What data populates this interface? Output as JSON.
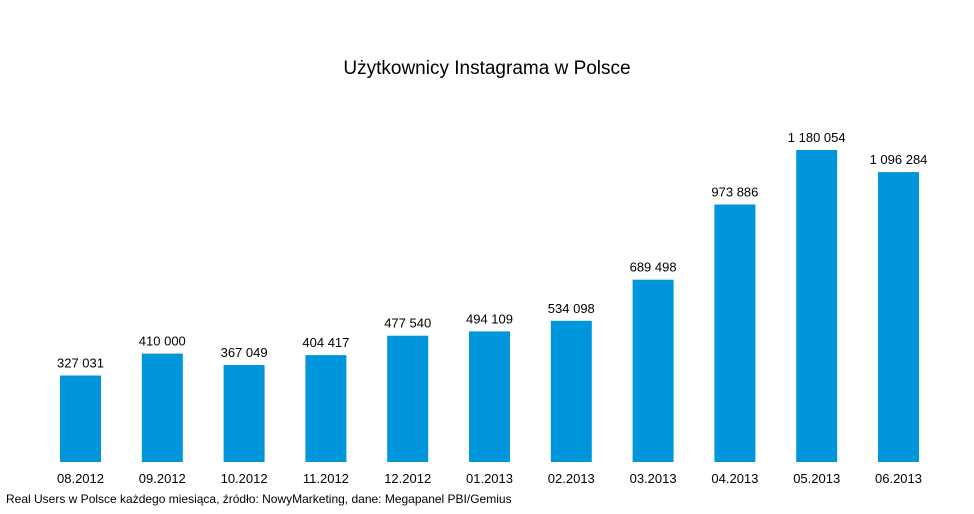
{
  "chart_data": {
    "type": "bar",
    "title": "Użytkownicy Instagrama w Polsce",
    "categories": [
      "08.2012",
      "09.2012",
      "10.2012",
      "11.2012",
      "12.2012",
      "01.2013",
      "02.2013",
      "03.2013",
      "04.2013",
      "05.2013",
      "06.2013"
    ],
    "values": [
      327031,
      410000,
      367049,
      404417,
      477540,
      494109,
      534098,
      689498,
      973886,
      1180054,
      1096284
    ],
    "value_labels": [
      "327 031",
      "410 000",
      "367 049",
      "404 417",
      "477 540",
      "494 109",
      "534 098",
      "689 498",
      "973 886",
      "1 180 054",
      "1 096 284"
    ],
    "xlabel": "",
    "ylabel": "",
    "ylim": [
      0,
      1180054
    ],
    "grid": false,
    "legend": "none",
    "bar_color": "#0096DC",
    "caption": "Real Users w Polsce każdego miesiąca, źródło: NowyMarketing, dane: Megapanel PBI/Gemius"
  }
}
